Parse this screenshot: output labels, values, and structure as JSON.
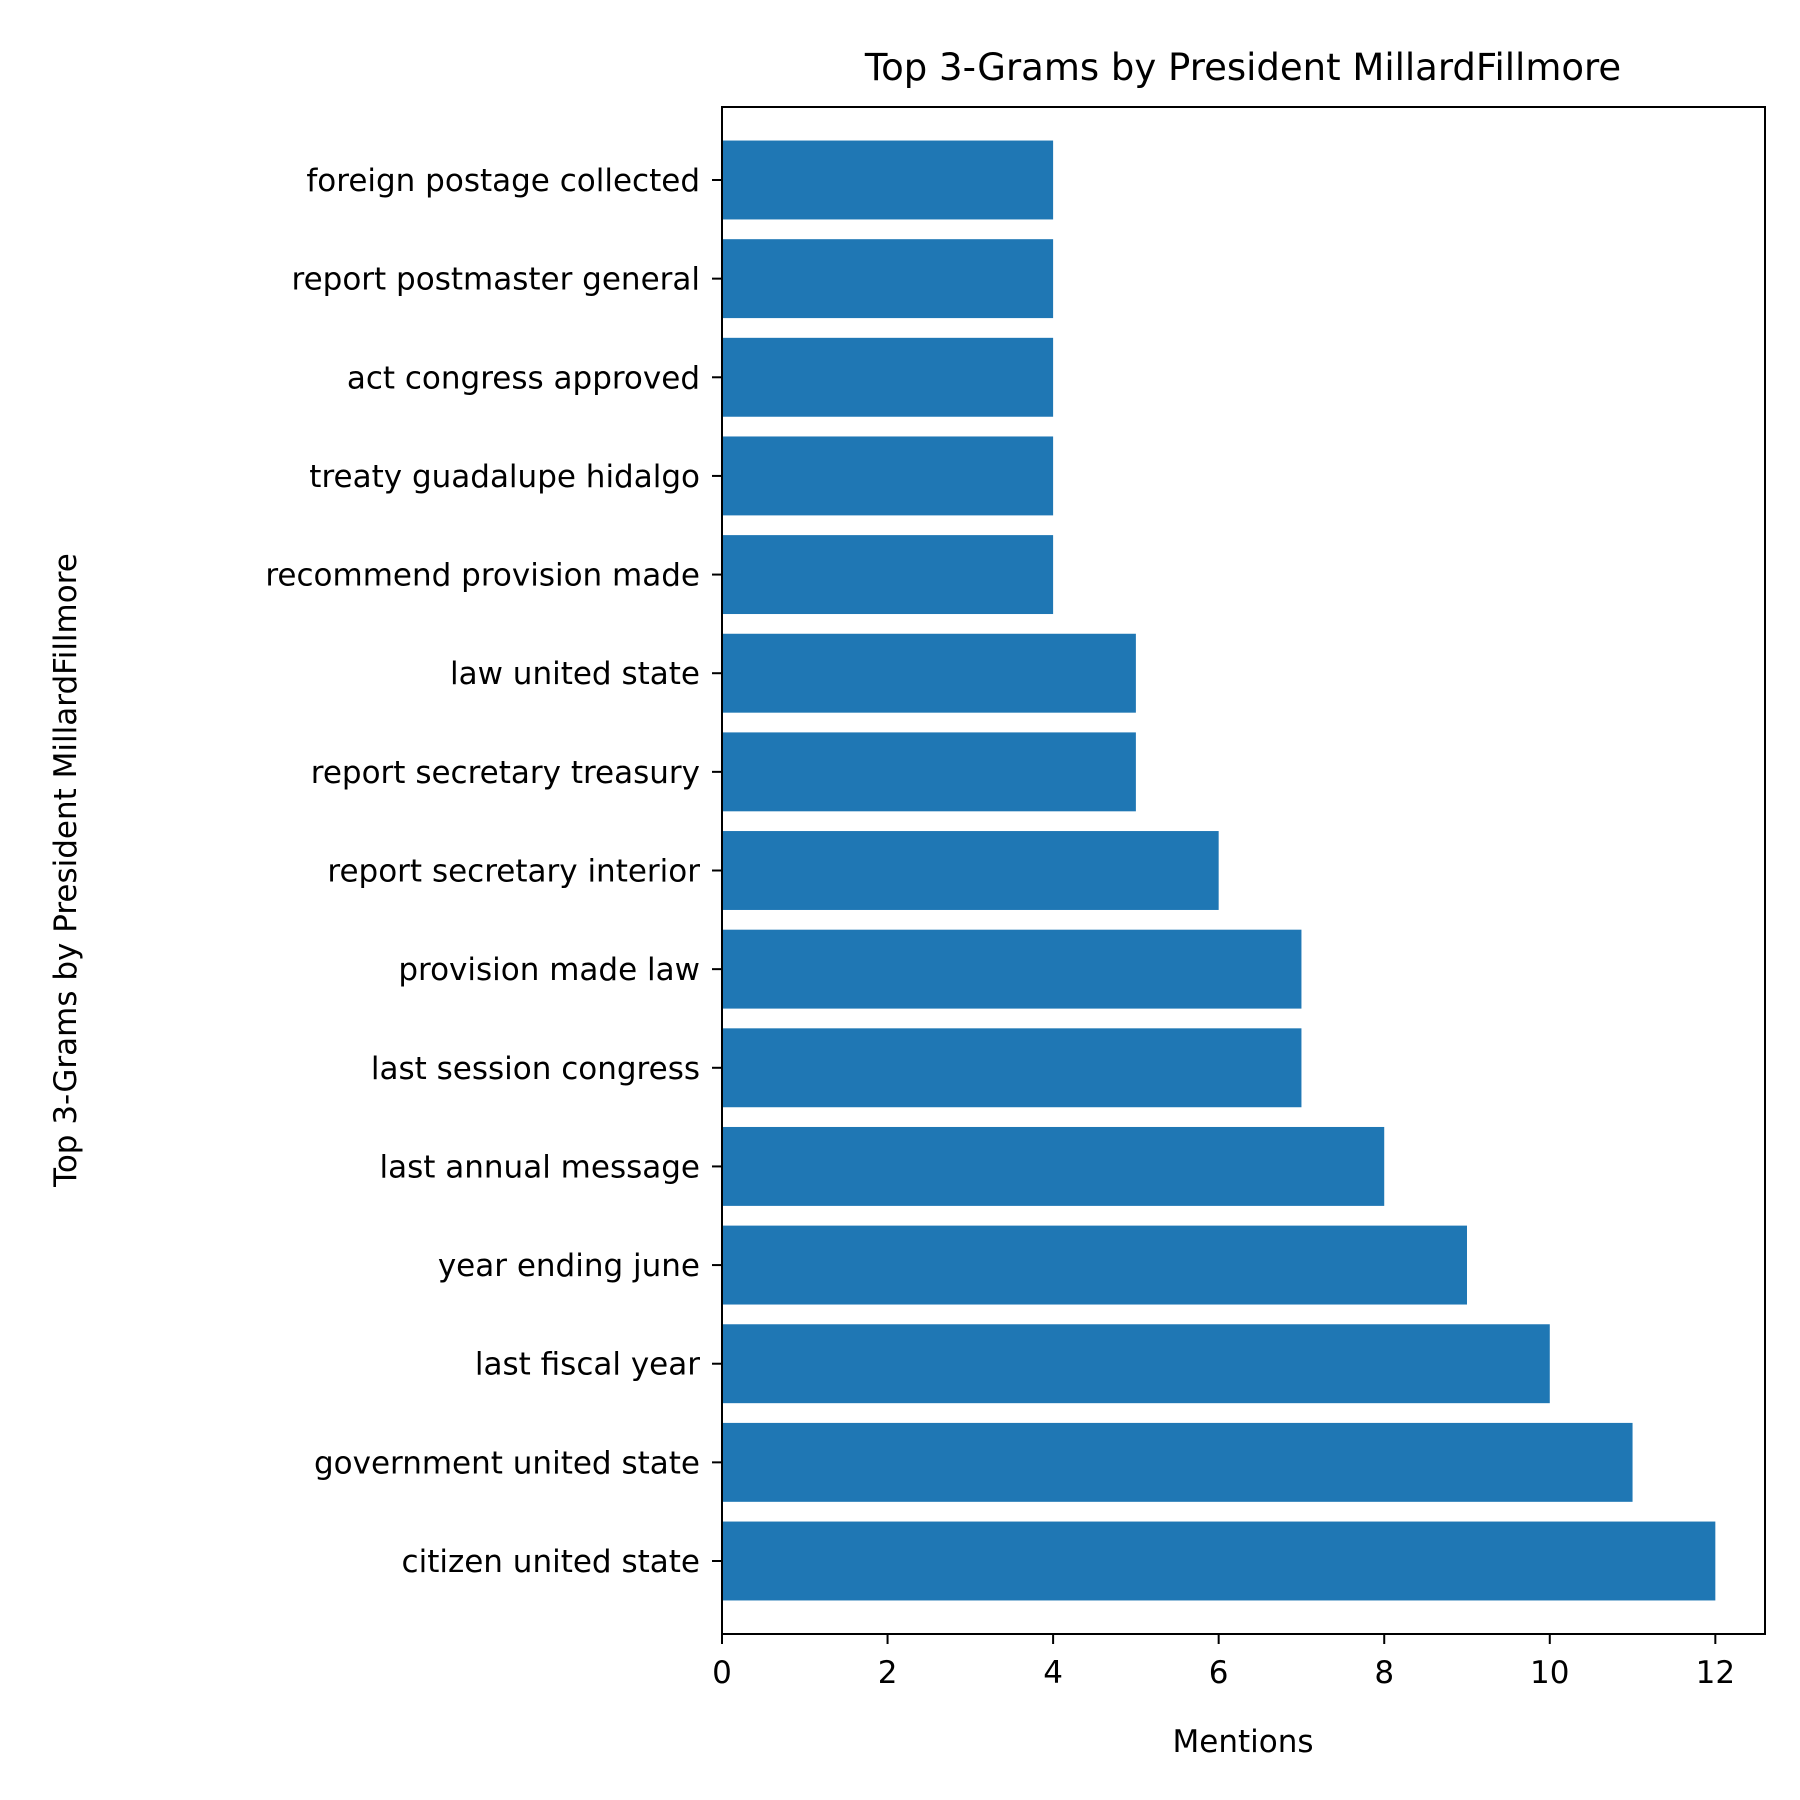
{
  "chart_data": {
    "type": "bar",
    "orientation": "horizontal",
    "title": "Top 3-Grams by President MillardFillmore",
    "xlabel": "Mentions",
    "ylabel": "Top 3-Grams by President MillardFillmore",
    "xlim": [
      0,
      12.6
    ],
    "xticks": [
      0,
      2,
      4,
      6,
      8,
      10,
      12
    ],
    "grid": false,
    "legend": "none",
    "bar_color": "#1f77b4",
    "categories": [
      "citizen united state",
      "government united state",
      "last fiscal year",
      "year ending june",
      "last annual message",
      "last session congress",
      "provision made law",
      "report secretary interior",
      "report secretary treasury",
      "law united state",
      "recommend provision made",
      "treaty guadalupe hidalgo",
      "act congress approved",
      "report postmaster general",
      "foreign postage collected"
    ],
    "values": [
      12,
      11,
      10,
      9,
      8,
      7,
      7,
      6,
      5,
      5,
      4,
      4,
      4,
      4,
      4
    ]
  }
}
